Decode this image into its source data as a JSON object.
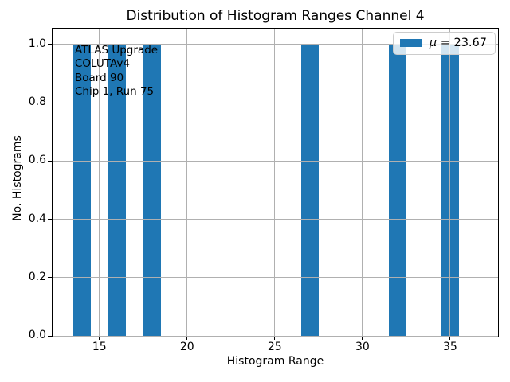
{
  "chart_data": {
    "type": "bar",
    "title": "Distribution of Histogram Ranges Channel 4",
    "xlabel": "Histogram Range",
    "ylabel": "No. Histograms",
    "x": [
      14,
      16,
      18,
      27,
      32,
      35
    ],
    "values": [
      1.0,
      1.0,
      1.0,
      1.0,
      1.0,
      1.0
    ],
    "bar_width": 1.0,
    "bar_color": "#1f77b4",
    "xlim": [
      12.33,
      37.73
    ],
    "ylim": [
      0,
      1.054
    ],
    "xticks": {
      "values": [
        15,
        20,
        25,
        30,
        35
      ],
      "labels": [
        "15",
        "20",
        "25",
        "30",
        "35"
      ]
    },
    "yticks": {
      "values": [
        0.0,
        0.2,
        0.4,
        0.6,
        0.8,
        1.0
      ],
      "labels": [
        "0.0",
        "0.2",
        "0.4",
        "0.6",
        "0.8",
        "1.0"
      ]
    },
    "grid": true,
    "grid_color": "#b0b0b0",
    "legend": {
      "position": "upper right",
      "mu_symbol": "μ",
      "value_text": " = 23.67",
      "swatch_color": "#1f77b4",
      "mean": 23.67
    },
    "annotation": {
      "lines": [
        "ATLAS Upgrade",
        "COLUTAv4",
        " Board 90",
        "Chip 1, Run 75"
      ]
    }
  }
}
